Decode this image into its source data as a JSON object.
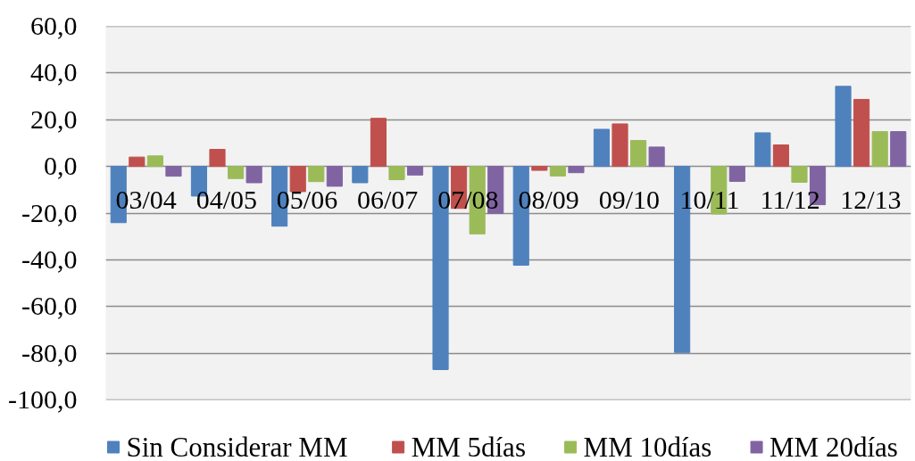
{
  "chart_data": {
    "type": "bar",
    "categories": [
      "03/04",
      "04/05",
      "05/06",
      "06/07",
      "07/08",
      "08/09",
      "09/10",
      "10/11",
      "11/12",
      "12/13"
    ],
    "series": [
      {
        "name": "Sin Considerar MM",
        "color": "#4f81bd",
        "values": [
          -24.1,
          -12.7,
          -25.6,
          -7.0,
          -87.0,
          -42.3,
          15.9,
          -79.7,
          14.4,
          34.3
        ]
      },
      {
        "name": "MM 5días",
        "color": "#c0504d",
        "values": [
          4.0,
          7.3,
          -10.8,
          20.6,
          -18.0,
          -1.7,
          18.2,
          null,
          9.2,
          28.7
        ]
      },
      {
        "name": "MM 10días",
        "color": "#9bbb59",
        "values": [
          4.5,
          -5.2,
          -6.5,
          -5.7,
          -28.9,
          -4.1,
          11.1,
          -20.4,
          -6.8,
          14.9
        ]
      },
      {
        "name": "MM 20días",
        "color": "#8064a2",
        "values": [
          -4.2,
          -7.0,
          -8.5,
          -3.7,
          -20.1,
          -2.7,
          8.3,
          -6.4,
          -16.4,
          14.9
        ]
      }
    ],
    "ylim": [
      -100,
      60
    ],
    "yticks": [
      {
        "value": -100,
        "label": "-100,0"
      },
      {
        "value": -80,
        "label": "-80,0"
      },
      {
        "value": -60,
        "label": "-60,0"
      },
      {
        "value": -40,
        "label": "-40,0"
      },
      {
        "value": -20,
        "label": "-20,0"
      },
      {
        "value": 0,
        "label": "0,0"
      },
      {
        "value": 20,
        "label": "20,0"
      },
      {
        "value": 40,
        "label": "40,0"
      },
      {
        "value": 60,
        "label": "60,0"
      }
    ],
    "grid": "y",
    "legend": "bottom"
  }
}
